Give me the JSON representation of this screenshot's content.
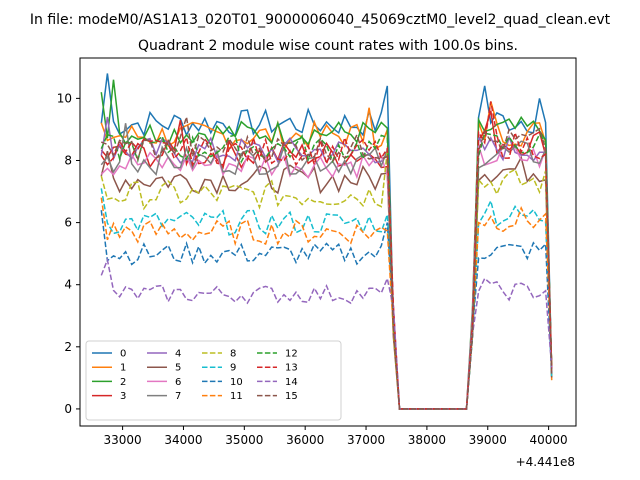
{
  "figure": {
    "suptitle": "In file: modeM0/AS1A13_020T01_9000006040_45069cztM0_level2_quad_clean.evt",
    "title": "Quadrant 2 module wise count rates with 100.0s bins.",
    "offset_label": "+4.441e8"
  },
  "chart_data": {
    "type": "line",
    "title": "Quadrant 2 module wise count rates with 100.0s bins.",
    "xlabel": "",
    "ylabel": "",
    "x_offset": 444100000,
    "xlim": [
      32300,
      40450
    ],
    "ylim": [
      -0.55,
      11.3
    ],
    "xticks": [
      33000,
      34000,
      35000,
      36000,
      37000,
      38000,
      39000,
      40000
    ],
    "xtick_labels": [
      "33000",
      "34000",
      "35000",
      "36000",
      "37000",
      "38000",
      "39000",
      "40000"
    ],
    "yticks": [
      0,
      2,
      4,
      6,
      8,
      10
    ],
    "ytick_labels": [
      "0",
      "2",
      "4",
      "6",
      "8",
      "10"
    ],
    "grid": false,
    "legend_position": "lower-left",
    "legend_columns": 4,
    "x_range": [
      32650,
      40050
    ],
    "x_step": 100,
    "series": [
      {
        "name": "0",
        "color": "#1f77b4",
        "style": "solid",
        "segments": [
          [
            32650,
            37350,
            9.2,
            0.45
          ],
          [
            38850,
            40050,
            9.3,
            0.45
          ]
        ],
        "peaks": [
          [
            32750,
            10.8
          ],
          [
            37350,
            10.4
          ],
          [
            38950,
            10.4
          ],
          [
            39850,
            10.0
          ]
        ]
      },
      {
        "name": "1",
        "color": "#ff7f0e",
        "style": "solid",
        "segments": [
          [
            32650,
            37350,
            8.8,
            0.45
          ],
          [
            38850,
            40050,
            8.9,
            0.45
          ]
        ],
        "peaks": [
          [
            35500,
            9.7
          ],
          [
            37050,
            9.7
          ],
          [
            39050,
            9.9
          ]
        ]
      },
      {
        "name": "2",
        "color": "#2ca02c",
        "style": "solid",
        "segments": [
          [
            32650,
            37350,
            8.9,
            0.4
          ],
          [
            38850,
            40050,
            9.0,
            0.4
          ]
        ],
        "peaks": [
          [
            32650,
            10.2
          ],
          [
            32850,
            10.6
          ]
        ]
      },
      {
        "name": "3",
        "color": "#d62728",
        "style": "solid",
        "segments": [
          [
            32650,
            37350,
            8.2,
            0.45
          ],
          [
            38850,
            40050,
            8.6,
            0.45
          ]
        ],
        "peaks": [
          [
            33950,
            9.3
          ],
          [
            39050,
            9.6
          ]
        ]
      },
      {
        "name": "4",
        "color": "#9467bd",
        "style": "solid",
        "segments": [
          [
            32650,
            37350,
            8.3,
            0.45
          ],
          [
            38850,
            40050,
            8.4,
            0.45
          ]
        ],
        "peaks": [
          [
            32750,
            9.4
          ]
        ]
      },
      {
        "name": "5",
        "color": "#8c564b",
        "style": "solid",
        "segments": [
          [
            32650,
            37350,
            7.4,
            0.45
          ],
          [
            38850,
            40050,
            7.7,
            0.45
          ]
        ],
        "peaks": [
          [
            32750,
            8.3
          ]
        ]
      },
      {
        "name": "6",
        "color": "#e377c2",
        "style": "solid",
        "segments": [
          [
            32650,
            37350,
            7.9,
            0.45
          ],
          [
            38850,
            40050,
            8.1,
            0.45
          ]
        ],
        "peaks": []
      },
      {
        "name": "7",
        "color": "#7f7f7f",
        "style": "solid",
        "segments": [
          [
            32650,
            37350,
            8.0,
            0.45
          ],
          [
            38850,
            40050,
            8.2,
            0.45
          ]
        ],
        "peaks": [
          [
            33050,
            9.2
          ]
        ]
      },
      {
        "name": "8",
        "color": "#bcbd22",
        "style": "dashed",
        "segments": [
          [
            32650,
            37350,
            6.9,
            0.45
          ],
          [
            38850,
            40050,
            7.3,
            0.45
          ]
        ],
        "peaks": [
          [
            32650,
            7.5
          ],
          [
            37350,
            8.3
          ]
        ]
      },
      {
        "name": "9",
        "color": "#17becf",
        "style": "dashed",
        "segments": [
          [
            32650,
            37350,
            6.0,
            0.4
          ],
          [
            38850,
            40050,
            6.2,
            0.4
          ]
        ],
        "peaks": [
          [
            32650,
            7.1
          ],
          [
            39050,
            6.7
          ]
        ]
      },
      {
        "name": "10",
        "color": "#1f77b4",
        "style": "dashed",
        "segments": [
          [
            32650,
            37350,
            5.0,
            0.35
          ],
          [
            38850,
            40050,
            5.1,
            0.35
          ]
        ],
        "peaks": [
          [
            32650,
            6.4
          ],
          [
            37350,
            6.0
          ]
        ]
      },
      {
        "name": "11",
        "color": "#ff7f0e",
        "style": "dashed",
        "segments": [
          [
            32650,
            37350,
            5.7,
            0.4
          ],
          [
            38850,
            40050,
            6.1,
            0.4
          ]
        ],
        "peaks": [
          [
            32650,
            6.8
          ]
        ]
      },
      {
        "name": "12",
        "color": "#2ca02c",
        "style": "dashed",
        "segments": [
          [
            32650,
            37350,
            8.4,
            0.45
          ],
          [
            38850,
            40050,
            8.5,
            0.45
          ]
        ],
        "peaks": []
      },
      {
        "name": "13",
        "color": "#d62728",
        "style": "dashed",
        "segments": [
          [
            32650,
            37350,
            8.3,
            0.45
          ],
          [
            38850,
            40050,
            8.5,
            0.45
          ]
        ],
        "peaks": [
          [
            39050,
            9.9
          ]
        ]
      },
      {
        "name": "14",
        "color": "#9467bd",
        "style": "dashed",
        "segments": [
          [
            32650,
            37350,
            3.7,
            0.3
          ],
          [
            38850,
            40050,
            3.8,
            0.3
          ]
        ],
        "peaks": [
          [
            32650,
            4.3
          ],
          [
            32750,
            4.8
          ],
          [
            37350,
            4.2
          ],
          [
            38950,
            4.2
          ]
        ]
      },
      {
        "name": "15",
        "color": "#8c564b",
        "style": "dashed",
        "segments": [
          [
            32650,
            37350,
            8.4,
            0.45
          ],
          [
            38850,
            40050,
            8.6,
            0.45
          ]
        ],
        "peaks": [
          [
            34050,
            9.4
          ]
        ]
      }
    ],
    "gap": {
      "start": 37550,
      "end": 38650,
      "value": 0,
      "transition_value": 2.8
    }
  }
}
